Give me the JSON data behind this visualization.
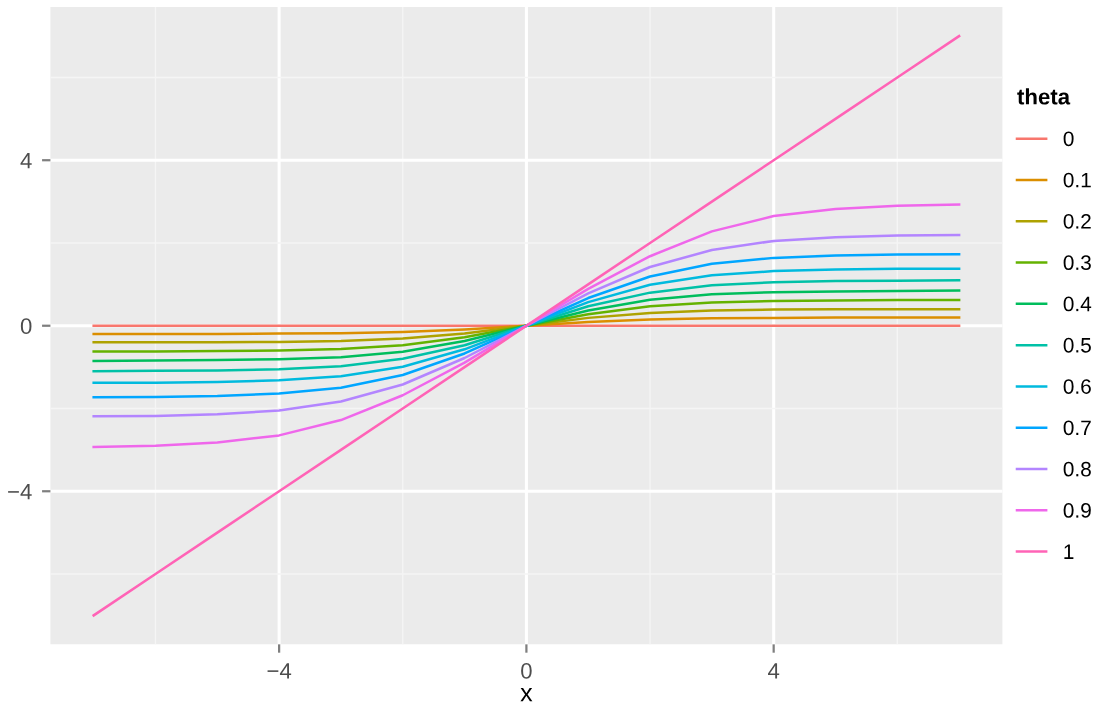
{
  "chart_data": {
    "type": "line",
    "xlabel": "x",
    "legend_title": "theta",
    "legend": "right",
    "grid": true,
    "line_style": "solid",
    "marker": "none",
    "x": [
      -7,
      -6,
      -5,
      -4,
      -3,
      -2,
      -1,
      0,
      1,
      2,
      3,
      4,
      5,
      6,
      7
    ],
    "xlim": [
      -7.7,
      7.7
    ],
    "xticks": [
      {
        "value": -4,
        "label": "−4"
      },
      0,
      4
    ],
    "ylim": [
      -7.7,
      7.7
    ],
    "yticks": [
      {
        "value": -4,
        "label": "−4"
      },
      0,
      4
    ],
    "series": [
      {
        "name": "0",
        "color": "#f8766d",
        "values": [
          0,
          0,
          0,
          0,
          0,
          0,
          0,
          0,
          0,
          0,
          0,
          0,
          0,
          0,
          0
        ]
      },
      {
        "name": "0.1",
        "color": "#db8e00",
        "values": [
          -0.2,
          -0.2,
          -0.2,
          -0.19,
          -0.18,
          -0.15,
          -0.09,
          0,
          0.09,
          0.15,
          0.18,
          0.19,
          0.2,
          0.2,
          0.2
        ]
      },
      {
        "name": "0.2",
        "color": "#aea200",
        "values": [
          -0.4,
          -0.4,
          -0.4,
          -0.39,
          -0.37,
          -0.31,
          -0.19,
          0,
          0.19,
          0.31,
          0.37,
          0.39,
          0.4,
          0.4,
          0.4
        ]
      },
      {
        "name": "0.3",
        "color": "#64b200",
        "values": [
          -0.62,
          -0.62,
          -0.61,
          -0.6,
          -0.56,
          -0.47,
          -0.28,
          0,
          0.28,
          0.47,
          0.56,
          0.6,
          0.61,
          0.62,
          0.62
        ]
      },
      {
        "name": "0.4",
        "color": "#00bd5c",
        "values": [
          -0.85,
          -0.84,
          -0.83,
          -0.81,
          -0.76,
          -0.63,
          -0.37,
          0,
          0.37,
          0.63,
          0.76,
          0.81,
          0.83,
          0.84,
          0.85
        ]
      },
      {
        "name": "0.5",
        "color": "#00c1a7",
        "values": [
          -1.1,
          -1.09,
          -1.08,
          -1.05,
          -0.98,
          -0.8,
          -0.47,
          0,
          0.47,
          0.8,
          0.98,
          1.05,
          1.08,
          1.09,
          1.1
        ]
      },
      {
        "name": "0.6",
        "color": "#00bade",
        "values": [
          -1.38,
          -1.38,
          -1.36,
          -1.32,
          -1.22,
          -0.99,
          -0.57,
          0,
          0.57,
          0.99,
          1.22,
          1.32,
          1.36,
          1.38,
          1.38
        ]
      },
      {
        "name": "0.7",
        "color": "#00a6ff",
        "values": [
          -1.73,
          -1.72,
          -1.7,
          -1.64,
          -1.5,
          -1.19,
          -0.67,
          0,
          0.67,
          1.19,
          1.5,
          1.64,
          1.7,
          1.72,
          1.73
        ]
      },
      {
        "name": "0.8",
        "color": "#b385ff",
        "values": [
          -2.19,
          -2.18,
          -2.14,
          -2.05,
          -1.83,
          -1.42,
          -0.78,
          0,
          0.78,
          1.42,
          1.83,
          2.05,
          2.14,
          2.18,
          2.19
        ]
      },
      {
        "name": "0.9",
        "color": "#ef67eb",
        "values": [
          -2.93,
          -2.9,
          -2.82,
          -2.65,
          -2.28,
          -1.68,
          -0.89,
          0,
          0.89,
          1.68,
          2.28,
          2.65,
          2.82,
          2.9,
          2.93
        ]
      },
      {
        "name": "1",
        "color": "#ff63b6",
        "values": [
          -7,
          -6,
          -5,
          -4,
          -3,
          -2,
          -1,
          0,
          1,
          2,
          3,
          4,
          5,
          6,
          7
        ]
      }
    ]
  }
}
